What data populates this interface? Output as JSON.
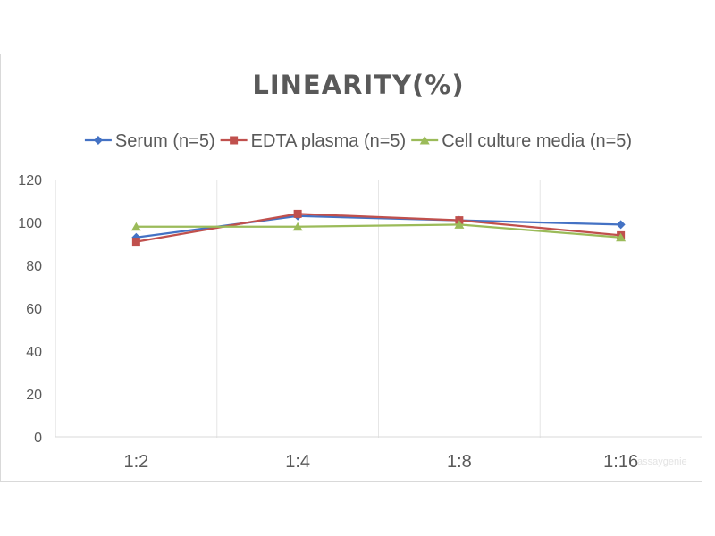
{
  "chart_data": {
    "type": "line",
    "title": "LINEARITY(%)",
    "categories": [
      "1:2",
      "1:4",
      "1:8",
      "1:16"
    ],
    "ylim": [
      0,
      120
    ],
    "yticks": [
      0,
      20,
      40,
      60,
      80,
      100,
      120
    ],
    "grid": "vertical",
    "legend": "top",
    "series": [
      {
        "name": "Serum (n=5)",
        "values": [
          93,
          103,
          101,
          99
        ],
        "color": "#4472c4",
        "marker": "diamond"
      },
      {
        "name": "EDTA plasma (n=5)",
        "values": [
          91,
          104,
          101,
          94
        ],
        "color": "#c0504d",
        "marker": "square"
      },
      {
        "name": "Cell culture media (n=5)",
        "values": [
          98,
          98,
          99,
          93
        ],
        "color": "#9bbb59",
        "marker": "triangle"
      }
    ]
  },
  "watermark": "assaygenie"
}
